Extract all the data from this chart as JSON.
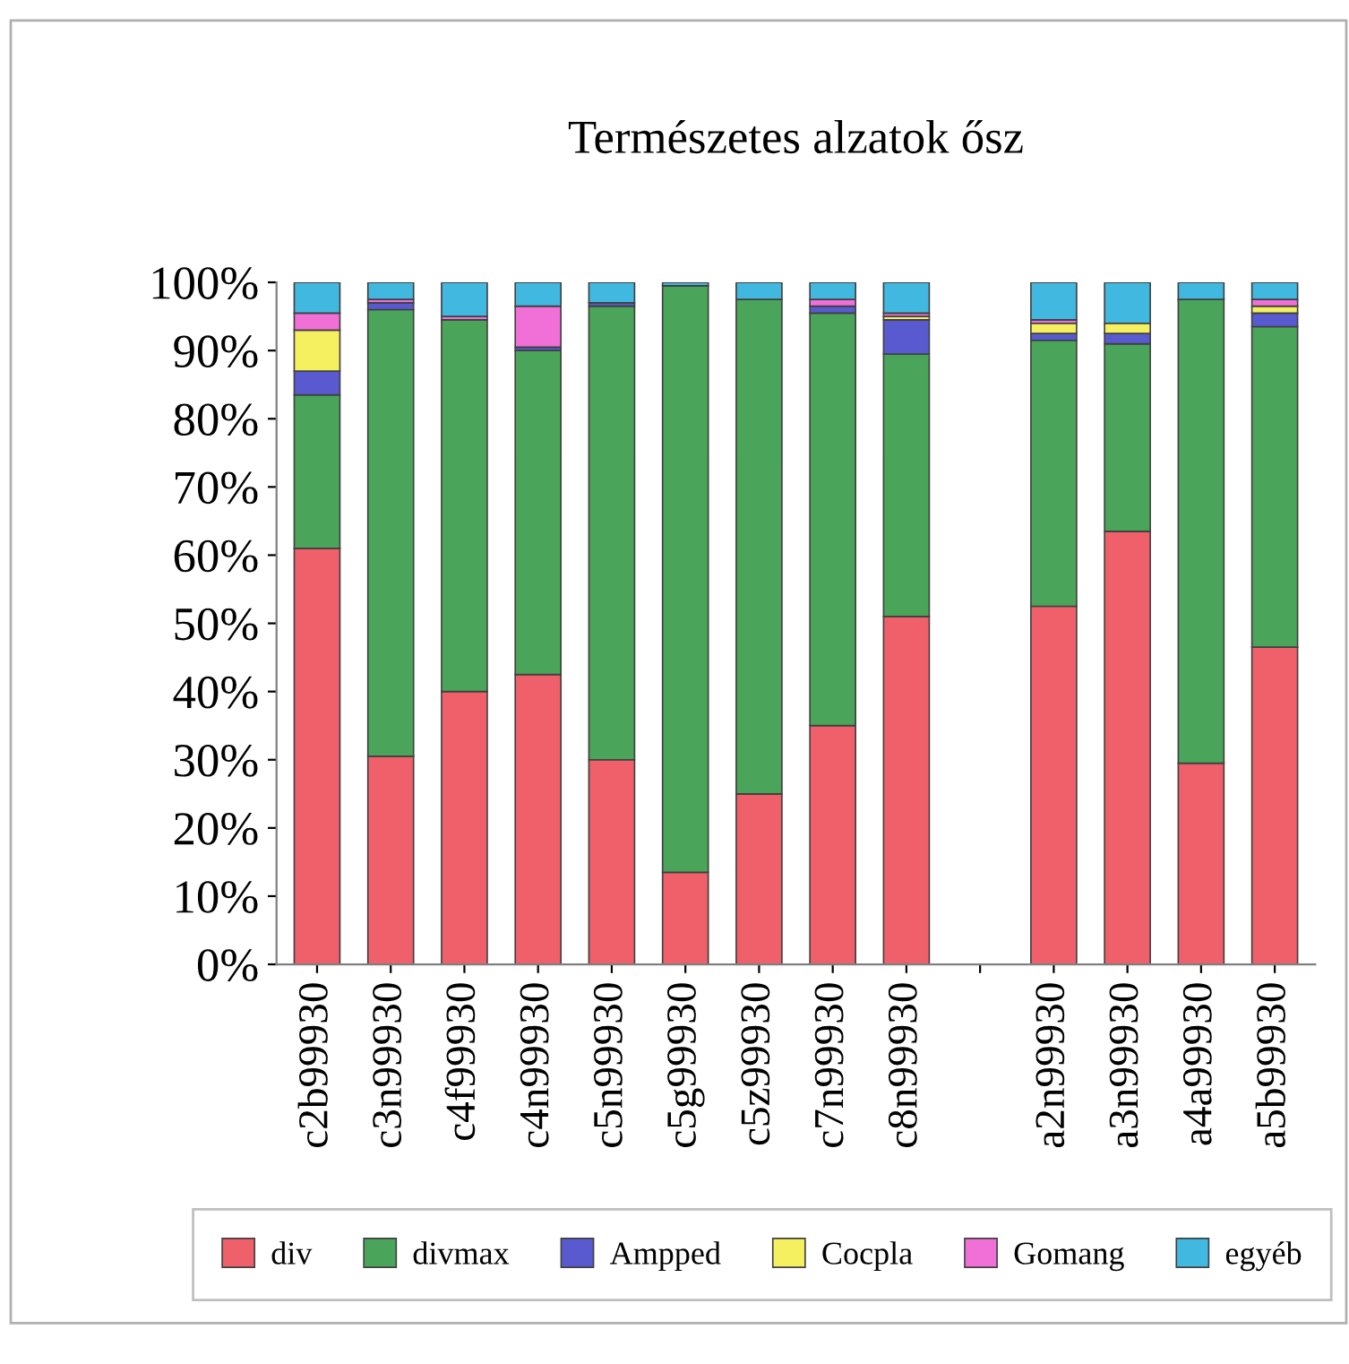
{
  "chart_data": {
    "type": "bar",
    "stacked": true,
    "title": "Természetes alzatok ősz",
    "categories": [
      "c2b99930",
      "c3n99930",
      "c4f99930",
      "c4n99930",
      "c5n99930",
      "c5g99930",
      "c5z99930",
      "c7n99930",
      "c8n99930",
      null,
      "a2n99930",
      "a3n99930",
      "a4a99930",
      "a5b99930"
    ],
    "series": [
      {
        "name": "div",
        "color": "#f0606a",
        "values": [
          61,
          30.5,
          40,
          42.5,
          30,
          13.5,
          25,
          35,
          51,
          null,
          52.5,
          63.5,
          29.5,
          46.5
        ]
      },
      {
        "name": "divmax",
        "color": "#4aa55a",
        "values": [
          22.5,
          65.5,
          54.5,
          47.5,
          66.5,
          86,
          72.5,
          60.5,
          38.5,
          null,
          39,
          27.5,
          68,
          47
        ]
      },
      {
        "name": "Ampped",
        "color": "#5a5ad0",
        "values": [
          3.5,
          1,
          0,
          0.5,
          0.5,
          0,
          0,
          1,
          5,
          null,
          1,
          1.5,
          0,
          2
        ]
      },
      {
        "name": "Cocpla",
        "color": "#f5f060",
        "values": [
          6,
          0,
          0,
          0,
          0,
          0,
          0,
          0,
          0.5,
          null,
          1.5,
          1.5,
          0,
          1
        ]
      },
      {
        "name": "Gomang",
        "color": "#f070d8",
        "values": [
          2.5,
          0.5,
          0.5,
          6,
          0,
          0,
          0,
          1,
          0.5,
          null,
          0.5,
          0,
          0,
          1
        ]
      },
      {
        "name": "egyéb",
        "color": "#40b8e0",
        "values": [
          4.5,
          2.5,
          5,
          3.5,
          3,
          0.5,
          2.5,
          2.5,
          4.5,
          null,
          5.5,
          6,
          2.5,
          2.5
        ]
      }
    ],
    "ylim": [
      0,
      100
    ],
    "yticks": [
      {
        "value": 0,
        "label": "0%"
      },
      {
        "value": 10,
        "label": "10%"
      },
      {
        "value": 20,
        "label": "20%"
      },
      {
        "value": 30,
        "label": "30%"
      },
      {
        "value": 40,
        "label": "40%"
      },
      {
        "value": 50,
        "label": "50%"
      },
      {
        "value": 60,
        "label": "60%"
      },
      {
        "value": 70,
        "label": "70%"
      },
      {
        "value": 80,
        "label": "80%"
      },
      {
        "value": 90,
        "label": "90%"
      },
      {
        "value": 100,
        "label": "100%"
      }
    ],
    "grid": false,
    "legend": "bottom"
  }
}
